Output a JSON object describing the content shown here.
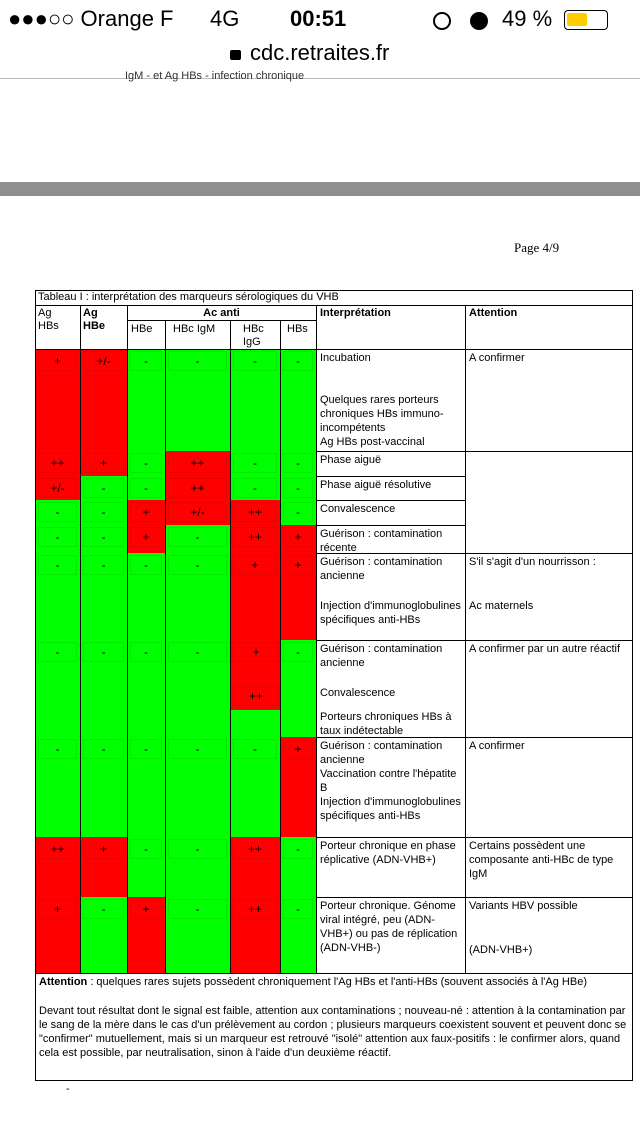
{
  "status_bar": {
    "carrier": "●●●○○ Orange F",
    "network": "4G",
    "time": "00:51",
    "battery": "49 %"
  },
  "url": "cdc.retraites.fr",
  "cut_text": "IgM - et Ag HBs - infection chronique",
  "page_number": "Page 4/9",
  "table": {
    "title": "Tableau I : interprétation des marqueurs sérologiques du VHB",
    "headers": {
      "ag_hbs": "Ag HBs",
      "ag_hbe": "Ag HBe",
      "ac_anti": "Ac anti",
      "hbe": "HBe",
      "hbc_igm": "HBc IgM",
      "hbc_igg": "HBc IgG",
      "hbs": "HBs",
      "interpretation": "Interprétation",
      "attention": "Attention"
    },
    "rows": [
      {
        "markers": [
          "+",
          "+/-",
          "-",
          "-",
          "-",
          "-"
        ],
        "colors": [
          "red",
          "red",
          "green",
          "green",
          "green",
          "green"
        ],
        "interpretation": [
          "Incubation",
          "Quelques rares porteurs chroniques HBs immuno-incompétents",
          "Ag HBs post-vaccinal"
        ],
        "attention": [
          "A confirmer"
        ]
      },
      {
        "markers": [
          "++",
          "+",
          "-",
          "++",
          "-",
          "-"
        ],
        "colors": [
          "red",
          "red",
          "green",
          "red",
          "green",
          "green"
        ],
        "interpretation": [
          "Phase aiguë"
        ]
      },
      {
        "markers": [
          "+/-",
          "-",
          "-",
          "++",
          "-",
          "-"
        ],
        "colors": [
          "red",
          "green",
          "green",
          "red",
          "green",
          "green"
        ],
        "interpretation": [
          "Phase aiguë résolutive"
        ]
      },
      {
        "markers": [
          "-",
          "-",
          "+",
          "+/-",
          "++",
          "-"
        ],
        "colors": [
          "green",
          "green",
          "red",
          "red",
          "red",
          "green"
        ],
        "interpretation": [
          "Convalescence"
        ]
      },
      {
        "markers": [
          "-",
          "-",
          "+",
          "-",
          "++",
          "+"
        ],
        "colors": [
          "green",
          "green",
          "red",
          "green",
          "red",
          "red"
        ],
        "interpretation": [
          "Guérison : contamination récente"
        ]
      },
      {
        "markers": [
          "-",
          "-",
          "-",
          "-",
          "+",
          "+"
        ],
        "colors": [
          "green",
          "green",
          "green",
          "green",
          "red",
          "red"
        ],
        "interpretation": [
          "Guérison : contamination ancienne",
          "Injection d'immunoglobulines spécifiques anti-HBs"
        ],
        "attention": [
          "S'il s'agit d'un nourrisson :",
          "Ac maternels"
        ]
      },
      {
        "markers": [
          "-",
          "-",
          "-",
          "-",
          [
            "+",
            "++"
          ],
          "-"
        ],
        "colors": [
          "green",
          "green",
          "green",
          "green",
          "red",
          "green"
        ],
        "interpretation": [
          "Guérison : contamination ancienne",
          "Convalescence",
          "Porteurs chroniques HBs à taux indétectable"
        ],
        "attention": [
          "A confirmer par un autre réactif"
        ]
      },
      {
        "markers": [
          "-",
          "-",
          "-",
          "-",
          "-",
          "+"
        ],
        "colors": [
          "green",
          "green",
          "green",
          "green",
          "green",
          "red"
        ],
        "interpretation": [
          "Guérison : contamination ancienne",
          "Vaccination contre l'hépatite B",
          "Injection d'immunoglobulines spécifiques anti-HBs"
        ],
        "attention": [
          "A confirmer"
        ]
      },
      {
        "markers": [
          "++",
          "+",
          "-",
          "-",
          "++",
          "-"
        ],
        "colors": [
          "red",
          "red",
          "green",
          "green",
          "red",
          "green"
        ],
        "interpretation": [
          "Porteur chronique en phase réplicative (ADN-VHB+)"
        ],
        "attention": [
          "Certains possèdent une composante anti-HBc de type IgM"
        ]
      },
      {
        "markers": [
          "+",
          "-",
          "+",
          "-",
          "++",
          "-"
        ],
        "colors": [
          "red",
          "green",
          "red",
          "green",
          "red",
          "green"
        ],
        "interpretation": [
          "Porteur chronique. Génome viral intégré, peu (ADN-VHB+) ou pas de réplication (ADN-VHB-)"
        ],
        "attention": [
          "Variants HBV possible",
          "(ADN-VHB+)"
        ]
      }
    ]
  },
  "note": {
    "label": "Attention",
    "text": " : quelques rares sujets possèdent chroniquement l'Ag HBs et l'anti-HBs (souvent associés à l'Ag HBe)"
  },
  "paragraph": "Devant tout résultat dont le signal est faible, attention aux contaminations ; nouveau-né : attention à la contamination par le sang de la mère dans le cas d'un prélèvement au cordon ; plusieurs marqueurs coexistent souvent et peuvent donc se \"confirmer\" mutuellement, mais si un marqueur est retrouvé \"isolé\" attention aux faux-positifs : le confirmer alors, quand cela est possible, par neutralisation, sinon à l'aide d'un deuxième réactif.",
  "dash": "-"
}
